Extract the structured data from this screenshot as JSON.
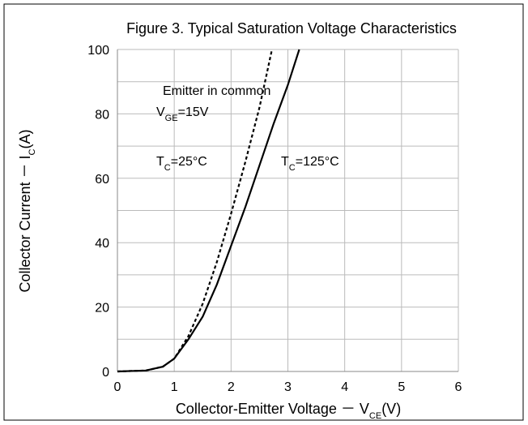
{
  "chart_data": {
    "type": "line",
    "title": "Figure 3. Typical Saturation Voltage Characteristics",
    "xlabel": [
      "Collector-Emitter Voltage － V",
      "CE",
      "(V)"
    ],
    "ylabel": [
      "Collector Current － I",
      "C",
      "(A)"
    ],
    "annotations": [
      [
        "Emitter in common"
      ],
      [
        "V",
        "GE",
        "=15V"
      ]
    ],
    "xlim": [
      0,
      6
    ],
    "xticks": [
      0,
      1,
      2,
      3,
      4,
      5,
      6
    ],
    "ylim": [
      0,
      100
    ],
    "yticks": [
      0,
      20,
      40,
      60,
      80,
      100
    ],
    "y_minor_grid": [
      10,
      30,
      50,
      70,
      90
    ],
    "grid": true,
    "series": [
      {
        "name": [
          "T",
          "C",
          "=25°C"
        ],
        "color": "#000000",
        "dashed": true,
        "x": [
          0,
          0.5,
          0.8,
          1,
          1.25,
          1.5,
          1.75,
          2,
          2.25,
          2.5,
          2.72
        ],
        "values": [
          0,
          0.3,
          1.5,
          4,
          11,
          21,
          34,
          49,
          65,
          82,
          100
        ]
      },
      {
        "name": [
          "T",
          "C",
          "=125°C"
        ],
        "color": "#000000",
        "dashed": false,
        "x": [
          0,
          0.5,
          0.8,
          1,
          1.25,
          1.5,
          1.75,
          2,
          2.25,
          2.5,
          2.75,
          3,
          3.2
        ],
        "values": [
          0,
          0.3,
          1.5,
          4,
          10,
          17,
          27,
          39,
          51,
          64,
          77,
          89,
          100
        ]
      }
    ]
  }
}
